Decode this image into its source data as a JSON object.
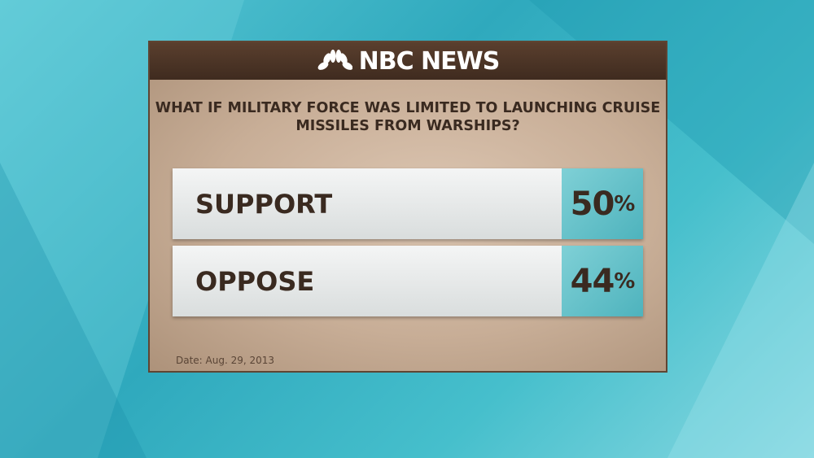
{
  "brand": "NBC NEWS",
  "chart_data": {
    "type": "bar",
    "title": "WHAT IF MILITARY FORCE WAS LIMITED TO LAUNCHING CRUISE MISSILES FROM WARSHIPS?",
    "categories": [
      "SUPPORT",
      "OPPOSE"
    ],
    "values": [
      50,
      44
    ],
    "value_labels": [
      "50",
      "44"
    ],
    "unit": "%"
  },
  "date": "Date: Aug. 29, 2013",
  "colors": {
    "header": "#4a3426",
    "panel": "#c8ae97",
    "value_box": "#5fbfc7",
    "text": "#3a2a20"
  }
}
